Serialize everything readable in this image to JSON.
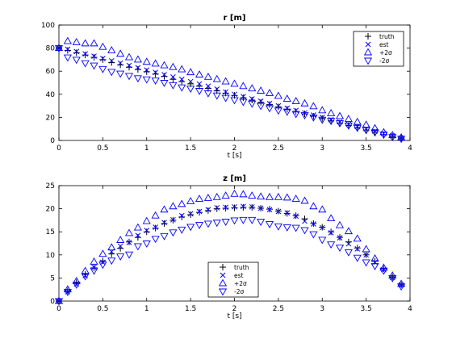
{
  "chart_data": [
    {
      "type": "scatter",
      "title": "r [m]",
      "xlabel": "t [s]",
      "ylabel": "",
      "xlim": [
        0,
        4
      ],
      "ylim": [
        0,
        100
      ],
      "xticks": [
        "0",
        "0.5",
        "1",
        "1.5",
        "2",
        "2.5",
        "3",
        "3.5",
        "4"
      ],
      "yticks": [
        "0",
        "20",
        "40",
        "60",
        "80",
        "100"
      ],
      "grid": false,
      "legend": "top-right",
      "t": [
        0,
        0.1,
        0.2,
        0.3,
        0.4,
        0.5,
        0.6,
        0.7,
        0.8,
        0.9,
        1.0,
        1.1,
        1.2,
        1.3,
        1.4,
        1.5,
        1.6,
        1.7,
        1.8,
        1.9,
        2.0,
        2.1,
        2.2,
        2.3,
        2.4,
        2.5,
        2.6,
        2.7,
        2.8,
        2.9,
        3.0,
        3.1,
        3.2,
        3.3,
        3.4,
        3.5,
        3.6,
        3.7,
        3.8,
        3.9
      ],
      "series": [
        {
          "name": "truth",
          "marker": "plus",
          "color": "#000000",
          "values": [
            80,
            78,
            76,
            74,
            72,
            70,
            67.5,
            65.5,
            63.5,
            61.5,
            59.5,
            57.5,
            55.5,
            53,
            51,
            49,
            47,
            45,
            43,
            41,
            39,
            37,
            35,
            33,
            31,
            29,
            27,
            25,
            23,
            21,
            19,
            17,
            15,
            13,
            11,
            9,
            7,
            5,
            3.5,
            2
          ]
        },
        {
          "name": "est",
          "marker": "x",
          "color": "#0000ff",
          "values": [
            80,
            79,
            77,
            75,
            73,
            71,
            69,
            67,
            65,
            63,
            61,
            59,
            57,
            55,
            53,
            51,
            49,
            47,
            44.5,
            42,
            40,
            38,
            36,
            34,
            32,
            30,
            28,
            26,
            24,
            22,
            20,
            18,
            16,
            14,
            12,
            10,
            8,
            6,
            4,
            2
          ]
        },
        {
          "name": "+2σ",
          "marker": "triangle-up",
          "color": "#0000ff",
          "values": [
            80,
            86,
            85,
            84,
            84,
            81,
            78,
            75,
            72,
            70,
            68,
            66.5,
            65,
            63.5,
            61.5,
            59,
            57,
            55,
            53,
            51,
            49,
            47,
            45,
            43,
            41,
            38.5,
            36,
            34,
            32,
            29.5,
            26,
            23.5,
            21,
            18.5,
            16,
            13.5,
            10.5,
            7,
            4.5,
            2.5
          ]
        },
        {
          "name": "-2σ",
          "marker": "triangle-down",
          "color": "#0000ff",
          "values": [
            80,
            72,
            70,
            67,
            65,
            62,
            59.5,
            58,
            56,
            54,
            53,
            52,
            50,
            48,
            46,
            45,
            43,
            41,
            39,
            37,
            35,
            33.5,
            32,
            30,
            28,
            26,
            25,
            23,
            22,
            20,
            18,
            17,
            15,
            13,
            11,
            9,
            7,
            5,
            3,
            1.5
          ]
        }
      ]
    },
    {
      "type": "scatter",
      "title": "z [m]",
      "xlabel": "t [s]",
      "ylabel": "",
      "xlim": [
        0,
        4
      ],
      "ylim": [
        0,
        25
      ],
      "xticks": [
        "0",
        "0.5",
        "1",
        "1.5",
        "2",
        "2.5",
        "3",
        "3.5",
        "4"
      ],
      "yticks": [
        "0",
        "5",
        "10",
        "15",
        "20",
        "25"
      ],
      "grid": false,
      "legend": "bottom-center",
      "t": [
        0,
        0.1,
        0.2,
        0.3,
        0.4,
        0.5,
        0.6,
        0.7,
        0.8,
        0.9,
        1.0,
        1.1,
        1.2,
        1.3,
        1.4,
        1.5,
        1.6,
        1.7,
        1.8,
        1.9,
        2.0,
        2.1,
        2.2,
        2.3,
        2.4,
        2.5,
        2.6,
        2.7,
        2.8,
        2.9,
        3.0,
        3.1,
        3.2,
        3.3,
        3.4,
        3.5,
        3.6,
        3.7,
        3.8,
        3.9
      ],
      "series": [
        {
          "name": "truth",
          "marker": "plus",
          "color": "#000000",
          "values": [
            0,
            2.2,
            4,
            5.8,
            7.2,
            8.7,
            10.2,
            11.4,
            12.8,
            13.8,
            15,
            15.8,
            16.8,
            17.5,
            18.2,
            18.7,
            19.2,
            19.6,
            20,
            20.1,
            20.2,
            20.3,
            20.3,
            20.1,
            19.9,
            19.5,
            19,
            18.5,
            17.8,
            16.8,
            16,
            15,
            13.8,
            12.8,
            11.5,
            10,
            8.6,
            7,
            5.2,
            3.5
          ]
        },
        {
          "name": "est",
          "marker": "x",
          "color": "#0000ff",
          "values": [
            0,
            2,
            3.7,
            5.5,
            7.3,
            8.4,
            10.7,
            11.9,
            12.7,
            14.2,
            15.3,
            16,
            17,
            17.6,
            18.5,
            18.9,
            19.4,
            19.8,
            20.2,
            20.3,
            20.4,
            20.5,
            20.4,
            20.1,
            19.8,
            19.4,
            19.1,
            18.4,
            17.3,
            16.7,
            15.9,
            14.8,
            13.7,
            12.4,
            11.3,
            10,
            8.4,
            6.8,
            5.1,
            3.5
          ]
        },
        {
          "name": "+2σ",
          "marker": "triangle-up",
          "color": "#0000ff",
          "values": [
            0,
            2.5,
            4.3,
            6.5,
            8.5,
            10.2,
            11.6,
            13.2,
            14.7,
            15.9,
            17.3,
            18.5,
            19.8,
            20.5,
            21,
            21.6,
            22.1,
            22.3,
            22.5,
            22.8,
            23.2,
            23.1,
            22.8,
            22.6,
            22.5,
            22.5,
            22.4,
            22.1,
            21.7,
            20.5,
            19.8,
            17.9,
            16.4,
            15.1,
            13.5,
            11.2,
            9.2,
            7.2,
            5.5,
            3.7
          ]
        },
        {
          "name": "-2σ",
          "marker": "triangle-down",
          "color": "#0000ff",
          "values": [
            0,
            2,
            3.6,
            5.4,
            6.6,
            7.9,
            8.8,
            9.7,
            10.1,
            11.9,
            12.5,
            13.5,
            14.1,
            14.9,
            15.5,
            16.1,
            16.5,
            16.8,
            17,
            17.2,
            17.5,
            17.6,
            17.6,
            17.2,
            16.7,
            16.2,
            16,
            15.9,
            15.4,
            14.5,
            13.3,
            12.3,
            11.6,
            10.6,
            9.4,
            8.4,
            7.6,
            6.6,
            5,
            3.2
          ]
        }
      ]
    }
  ]
}
